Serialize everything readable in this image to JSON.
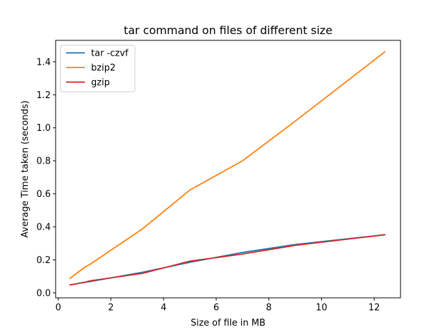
{
  "chart_data": {
    "type": "line",
    "title": "tar command on files of different size",
    "xlabel": "Size of file in MB",
    "ylabel": "Average Time taken (seconds)",
    "xlim": [
      -0.1,
      13.0
    ],
    "ylim": [
      -0.03,
      1.53
    ],
    "xticks": [
      0,
      2,
      4,
      6,
      8,
      10,
      12
    ],
    "yticks": [
      0.0,
      0.2,
      0.4,
      0.6,
      0.8,
      1.0,
      1.2,
      1.4
    ],
    "ytick_labels": [
      "0.0",
      "0.2",
      "0.4",
      "0.6",
      "0.8",
      "1.0",
      "1.2",
      "1.4"
    ],
    "grid": false,
    "legend_position": "top-left",
    "series": [
      {
        "name": "tar -czvf",
        "color": "#1f77b4",
        "x": [
          0.45,
          1.0,
          1.2,
          3.2,
          5.0,
          7.0,
          9.0,
          12.4
        ],
        "y": [
          0.048,
          0.065,
          0.068,
          0.125,
          0.185,
          0.245,
          0.293,
          0.352
        ]
      },
      {
        "name": "bzip2",
        "color": "#ff7f0e",
        "x": [
          0.45,
          1.0,
          1.2,
          3.2,
          5.0,
          7.0,
          9.0,
          12.4
        ],
        "y": [
          0.088,
          0.155,
          0.172,
          0.388,
          0.623,
          0.8,
          1.04,
          1.46
        ]
      },
      {
        "name": "gzip",
        "color": "#d62728",
        "x": [
          0.45,
          1.0,
          1.2,
          3.2,
          5.0,
          7.0,
          9.0,
          12.4
        ],
        "y": [
          0.048,
          0.063,
          0.073,
          0.118,
          0.192,
          0.235,
          0.288,
          0.352
        ]
      }
    ]
  }
}
